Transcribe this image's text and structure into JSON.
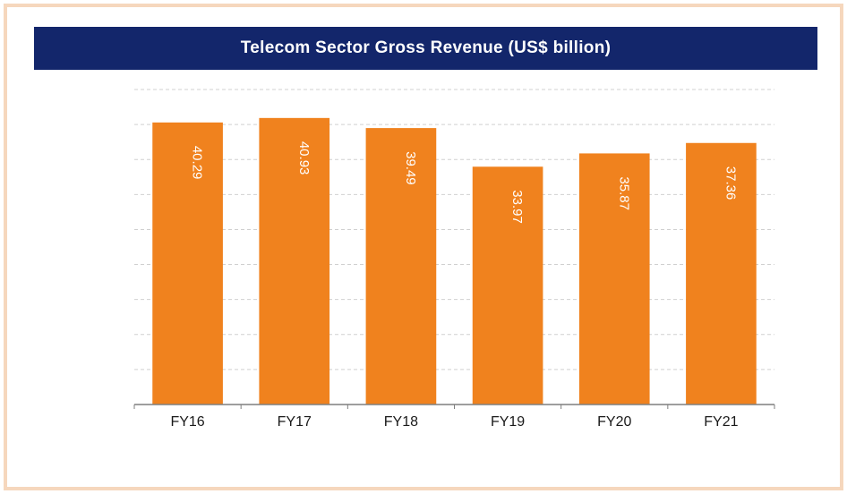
{
  "chart_data": {
    "type": "bar",
    "title": "Telecom Sector Gross Revenue (US$ billion)",
    "categories": [
      "FY16",
      "FY17",
      "FY18",
      "FY19",
      "FY20",
      "FY21"
    ],
    "values": [
      40.29,
      40.93,
      39.49,
      33.97,
      35.87,
      37.36
    ],
    "data_labels": [
      "40.29",
      "40.93",
      "39.49",
      "33.97",
      "35.87",
      "37.36"
    ],
    "ylim": [
      0,
      45
    ],
    "gridlines": [
      5,
      10,
      15,
      20,
      25,
      30,
      35,
      40,
      45
    ],
    "grid": true,
    "xlabel": "",
    "ylabel": "",
    "colors": {
      "bar": "#f0821e",
      "title_background": "#13266b",
      "title_text": "#ffffff",
      "frame_border": "#f6d7bd",
      "gridline": "#d0d0d0",
      "axis": "#7f7f7f",
      "tick_label": "#1a1a1a",
      "data_label": "#ffffff"
    }
  }
}
